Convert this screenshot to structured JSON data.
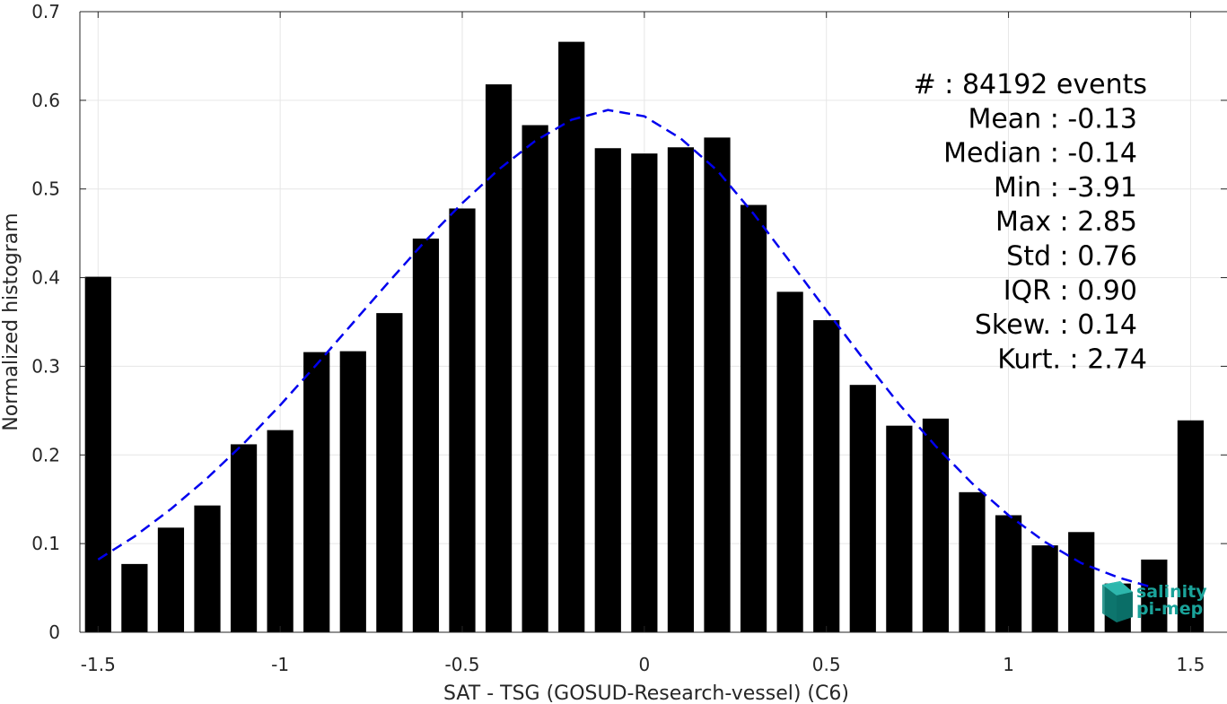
{
  "chart_data": {
    "type": "bar",
    "xlabel": "SAT - TSG (GOSUD-Research-vessel) (C6)",
    "ylabel": "Normalized histogram",
    "xlim": [
      -1.55,
      1.6
    ],
    "ylim": [
      0,
      0.7
    ],
    "xticks": [
      -1.5,
      -1,
      -0.5,
      0,
      0.5,
      1,
      1.5
    ],
    "xtick_labels": [
      "-1.5",
      "-1",
      "-0.5",
      "0",
      "0.5",
      "1",
      "1.5"
    ],
    "yticks": [
      0,
      0.1,
      0.2,
      0.3,
      0.4,
      0.5,
      0.6,
      0.7
    ],
    "ytick_labels": [
      "0",
      "0.1",
      "0.2",
      "0.3",
      "0.4",
      "0.5",
      "0.6",
      "0.7"
    ],
    "grid": true,
    "bar_color": "#000000",
    "x": [
      -1.5,
      -1.4,
      -1.3,
      -1.2,
      -1.1,
      -1.0,
      -0.9,
      -0.8,
      -0.7,
      -0.6,
      -0.5,
      -0.4,
      -0.3,
      -0.2,
      -0.1,
      0.0,
      0.1,
      0.2,
      0.3,
      0.4,
      0.5,
      0.6,
      0.7,
      0.8,
      0.9,
      1.0,
      1.1,
      1.2,
      1.3,
      1.4,
      1.5
    ],
    "values": [
      0.401,
      0.077,
      0.118,
      0.143,
      0.212,
      0.228,
      0.316,
      0.317,
      0.36,
      0.444,
      0.478,
      0.618,
      0.572,
      0.666,
      0.546,
      0.54,
      0.547,
      0.558,
      0.482,
      0.384,
      0.352,
      0.279,
      0.233,
      0.241,
      0.158,
      0.132,
      0.098,
      0.113,
      0.055,
      0.082,
      0.239
    ],
    "fit_curve": {
      "color": "#0000ee",
      "style": "dashed",
      "x": [
        -1.5,
        -1.4,
        -1.3,
        -1.2,
        -1.1,
        -1.0,
        -0.9,
        -0.8,
        -0.7,
        -0.6,
        -0.5,
        -0.4,
        -0.3,
        -0.2,
        -0.1,
        0.0,
        0.1,
        0.2,
        0.3,
        0.4,
        0.5,
        0.6,
        0.7,
        0.8,
        0.9,
        1.0,
        1.1,
        1.2,
        1.3,
        1.4
      ],
      "values": [
        0.082,
        0.108,
        0.139,
        0.174,
        0.213,
        0.256,
        0.302,
        0.349,
        0.396,
        0.442,
        0.484,
        0.522,
        0.554,
        0.578,
        0.589,
        0.582,
        0.557,
        0.521,
        0.472,
        0.418,
        0.363,
        0.309,
        0.257,
        0.21,
        0.168,
        0.132,
        0.102,
        0.078,
        0.062,
        0.05
      ]
    },
    "stats": [
      "#  : 84192 events",
      "Mean : -0.13",
      "Median : -0.14",
      "Min : -3.91",
      "Max : 2.85",
      "Std : 0.76",
      "IQR : 0.90",
      "Skew. : 0.14",
      "Kurt. : 2.74"
    ]
  },
  "logo": {
    "line1": "salinity",
    "line2": "pi-mep",
    "color": "#1aa39a"
  }
}
